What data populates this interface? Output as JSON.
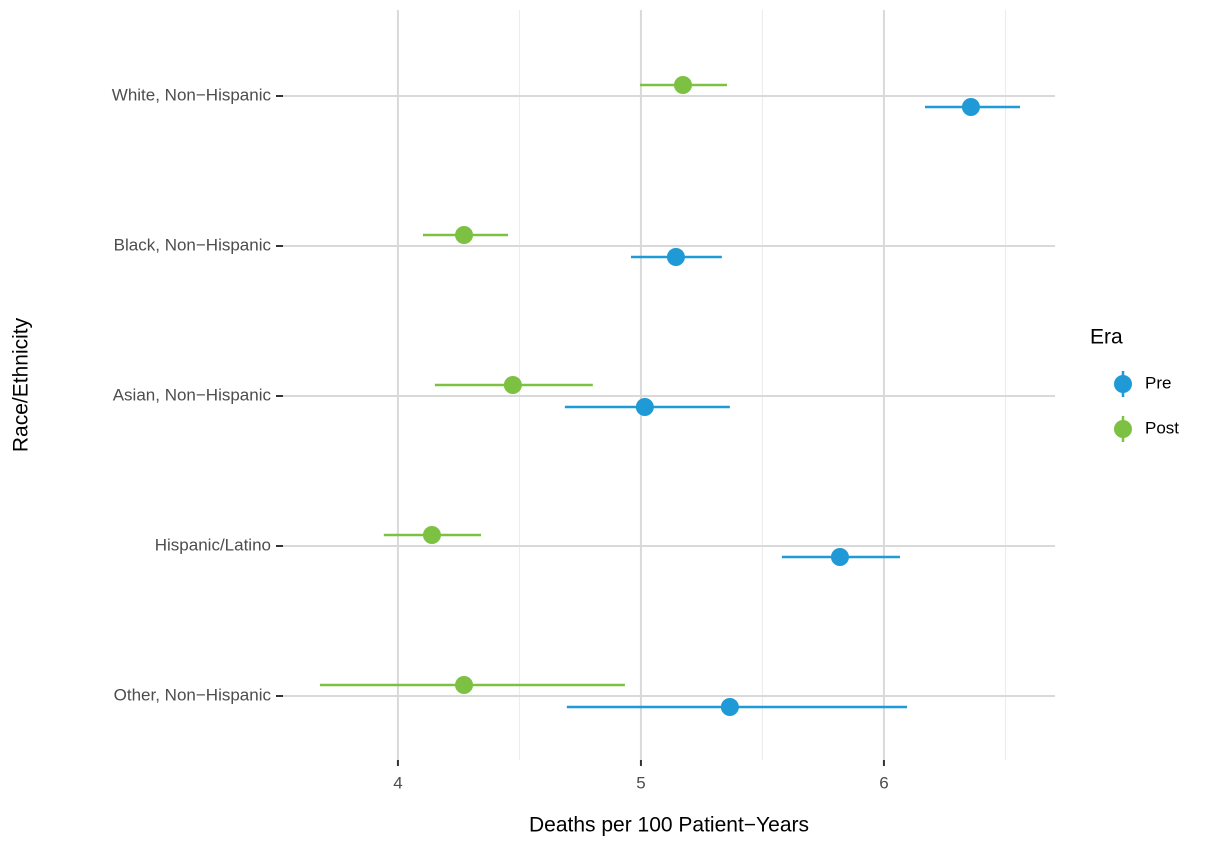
{
  "chart_data": {
    "type": "pointrange",
    "orientation": "horizontal",
    "x_label": "Deaths per 100 Patient−Years",
    "y_label": "Race/Ethnicity",
    "categories": [
      "White, Non−Hispanic",
      "Black, Non−Hispanic",
      "Asian, Non−Hispanic",
      "Hispanic/Latino",
      "Other, Non−Hispanic"
    ],
    "series": [
      {
        "name": "Pre",
        "color": "#1f9ad6",
        "values": [
          6.358,
          5.144,
          5.016,
          5.819,
          5.366
        ],
        "lower": [
          6.169,
          4.959,
          4.687,
          5.58,
          4.695
        ],
        "upper": [
          6.56,
          5.333,
          5.366,
          6.066,
          6.095
        ]
      },
      {
        "name": "Post",
        "color": "#7dc142",
        "values": [
          5.173,
          4.272,
          4.473,
          4.14,
          4.272
        ],
        "lower": [
          4.996,
          4.103,
          4.152,
          3.942,
          3.679
        ],
        "upper": [
          5.354,
          4.453,
          4.802,
          4.342,
          4.934
        ]
      }
    ],
    "legend_title": "Era",
    "legend_position": "right",
    "xlim": [
      3.527,
      6.704
    ],
    "xticks": [
      4,
      5,
      6
    ],
    "x_minor_gridlines": [
      4.5,
      5.5,
      6.5
    ],
    "grid": true
  }
}
